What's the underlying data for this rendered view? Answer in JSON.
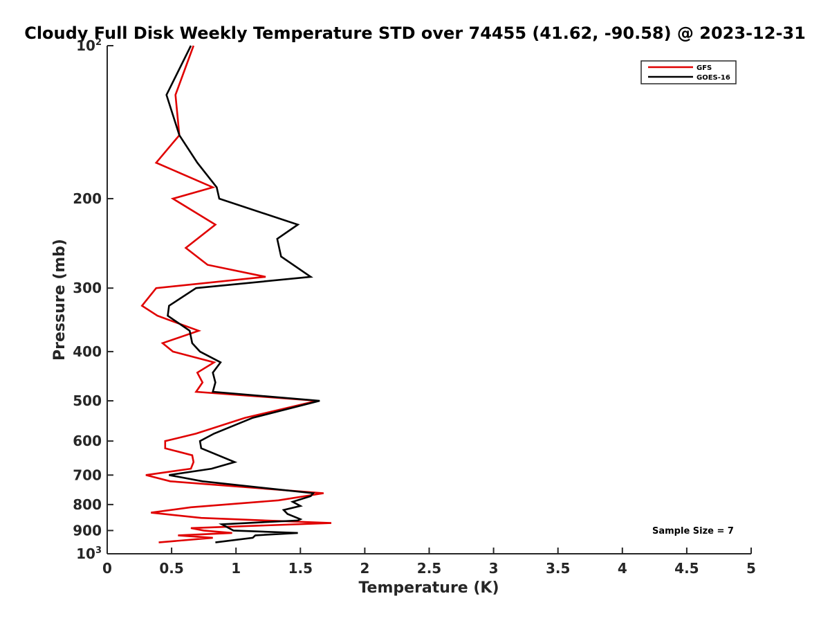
{
  "chart_data": {
    "type": "line",
    "title": "Cloudy Full Disk Weekly Temperature STD over 74455 (41.62, -90.58) @ 2023-12-31",
    "xlabel": "Temperature (K)",
    "ylabel": "Pressure (mb)",
    "xlim": [
      0,
      5
    ],
    "ylim": [
      100,
      1000
    ],
    "y_scale": "log",
    "y_reversed": true,
    "x_ticks": [
      "0",
      "0.5",
      "1",
      "1.5",
      "2",
      "2.5",
      "3",
      "3.5",
      "4",
      "4.5",
      "5"
    ],
    "y_ticks": [
      {
        "value": 100,
        "base": "10",
        "exp": "2"
      },
      {
        "value": 200,
        "label": "200"
      },
      {
        "value": 300,
        "label": "300"
      },
      {
        "value": 400,
        "label": "400"
      },
      {
        "value": 500,
        "label": "500"
      },
      {
        "value": 600,
        "label": "600"
      },
      {
        "value": 700,
        "label": "700"
      },
      {
        "value": 800,
        "label": "800"
      },
      {
        "value": 900,
        "label": "900"
      },
      {
        "value": 1000,
        "base": "10",
        "exp": "3"
      }
    ],
    "legend_position": "top-right",
    "annotation": "Sample Size = 7",
    "series": [
      {
        "name": "GFS",
        "color": "#e00000",
        "points": [
          [
            0.67,
            100
          ],
          [
            0.53,
            125
          ],
          [
            0.56,
            150
          ],
          [
            0.38,
            170
          ],
          [
            0.82,
            190
          ],
          [
            0.51,
            200
          ],
          [
            0.84,
            225
          ],
          [
            0.61,
            250
          ],
          [
            0.78,
            270
          ],
          [
            1.23,
            285
          ],
          [
            0.38,
            300
          ],
          [
            0.27,
            325
          ],
          [
            0.39,
            340
          ],
          [
            0.71,
            364
          ],
          [
            0.43,
            385
          ],
          [
            0.51,
            400
          ],
          [
            0.83,
            420
          ],
          [
            0.7,
            440
          ],
          [
            0.74,
            460
          ],
          [
            0.69,
            480
          ],
          [
            1.63,
            500
          ],
          [
            1.07,
            540
          ],
          [
            0.69,
            580
          ],
          [
            0.45,
            600
          ],
          [
            0.45,
            620
          ],
          [
            0.66,
            640
          ],
          [
            0.67,
            660
          ],
          [
            0.65,
            680
          ],
          [
            0.3,
            700
          ],
          [
            0.49,
            720
          ],
          [
            1.68,
            760
          ],
          [
            1.33,
            785
          ],
          [
            0.65,
            810
          ],
          [
            0.34,
            830
          ],
          [
            0.73,
            850
          ],
          [
            1.74,
            870
          ],
          [
            0.65,
            890
          ],
          [
            0.75,
            900
          ],
          [
            0.97,
            910
          ],
          [
            0.55,
            920
          ],
          [
            0.82,
            930
          ],
          [
            0.4,
            950
          ]
        ]
      },
      {
        "name": "GOES-16",
        "color": "#000000",
        "points": [
          [
            0.65,
            100
          ],
          [
            0.46,
            125
          ],
          [
            0.56,
            150
          ],
          [
            0.7,
            170
          ],
          [
            0.85,
            190
          ],
          [
            0.87,
            200
          ],
          [
            1.48,
            225
          ],
          [
            1.32,
            240
          ],
          [
            1.35,
            260
          ],
          [
            1.58,
            285
          ],
          [
            0.69,
            300
          ],
          [
            0.48,
            325
          ],
          [
            0.47,
            340
          ],
          [
            0.64,
            364
          ],
          [
            0.66,
            385
          ],
          [
            0.72,
            400
          ],
          [
            0.88,
            420
          ],
          [
            0.82,
            440
          ],
          [
            0.84,
            460
          ],
          [
            0.82,
            480
          ],
          [
            1.65,
            500
          ],
          [
            1.13,
            540
          ],
          [
            0.83,
            580
          ],
          [
            0.72,
            600
          ],
          [
            0.73,
            620
          ],
          [
            0.99,
            660
          ],
          [
            0.81,
            680
          ],
          [
            0.48,
            700
          ],
          [
            0.74,
            720
          ],
          [
            1.6,
            760
          ],
          [
            1.58,
            770
          ],
          [
            1.44,
            790
          ],
          [
            1.5,
            805
          ],
          [
            1.37,
            820
          ],
          [
            1.4,
            835
          ],
          [
            1.5,
            855
          ],
          [
            1.48,
            860
          ],
          [
            0.89,
            875
          ],
          [
            0.98,
            900
          ],
          [
            1.48,
            910
          ],
          [
            1.15,
            920
          ],
          [
            1.13,
            930
          ],
          [
            0.84,
            950
          ]
        ]
      }
    ]
  }
}
